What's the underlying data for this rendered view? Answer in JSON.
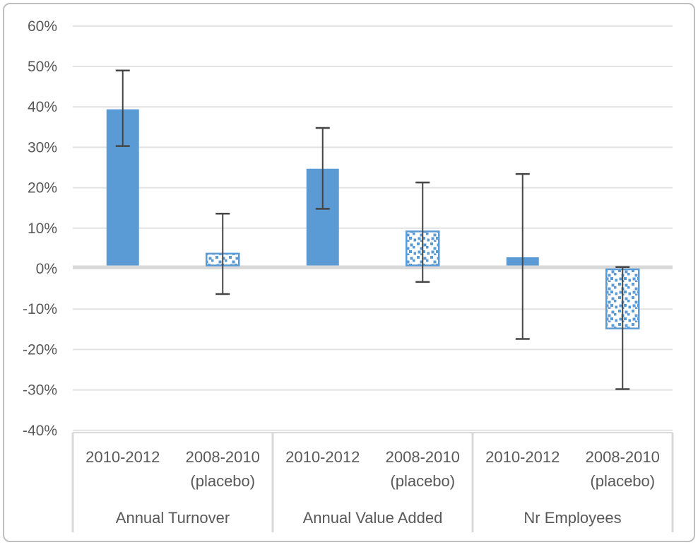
{
  "chart_data": {
    "type": "bar",
    "title": "",
    "xlabel": "",
    "ylabel": "",
    "y_axis": {
      "min": -40,
      "max": 60,
      "step": 10,
      "format": "percent",
      "ticks": [
        "60%",
        "50%",
        "40%",
        "30%",
        "20%",
        "10%",
        "0%",
        "-10%",
        "-20%",
        "-30%",
        "-40%"
      ]
    },
    "grid": true,
    "legend": "none",
    "groups": [
      {
        "label": "Annual Turnover",
        "bars": [
          {
            "period_lines": [
              "2010-2012"
            ],
            "value": 39.4,
            "ci_low": 30.3,
            "ci_high": 49.0,
            "style": "solid"
          },
          {
            "period_lines": [
              "2008-2010",
              "(placebo)"
            ],
            "value": 3.7,
            "ci_low": -6.3,
            "ci_high": 13.6,
            "style": "pattern"
          }
        ]
      },
      {
        "label": "Annual Value Added",
        "bars": [
          {
            "period_lines": [
              "2010-2012"
            ],
            "value": 24.7,
            "ci_low": 14.8,
            "ci_high": 34.8,
            "style": "solid"
          },
          {
            "period_lines": [
              "2008-2010",
              "(placebo)"
            ],
            "value": 9.2,
            "ci_low": -3.3,
            "ci_high": 21.3,
            "style": "pattern"
          }
        ]
      },
      {
        "label": "Nr Employees",
        "bars": [
          {
            "period_lines": [
              "2010-2012"
            ],
            "value": 2.8,
            "ci_low": -17.4,
            "ci_high": 23.4,
            "style": "solid"
          },
          {
            "period_lines": [
              "2008-2010",
              "(placebo)"
            ],
            "value": -14.8,
            "ci_low": -29.8,
            "ci_high": 0.4,
            "style": "pattern"
          }
        ]
      }
    ],
    "colors": {
      "bar_fill": "#5B9BD5",
      "pattern_dot": "#5B9BD5",
      "pattern_bg": "#FFFFFF",
      "error_bar": "#454545",
      "gridline": "#E2E2E2",
      "zero_line": "#D9D9D9",
      "axis_line": "#D9D9D9",
      "tick_text": "#595959",
      "frame_border": "#BFBFBF"
    }
  }
}
